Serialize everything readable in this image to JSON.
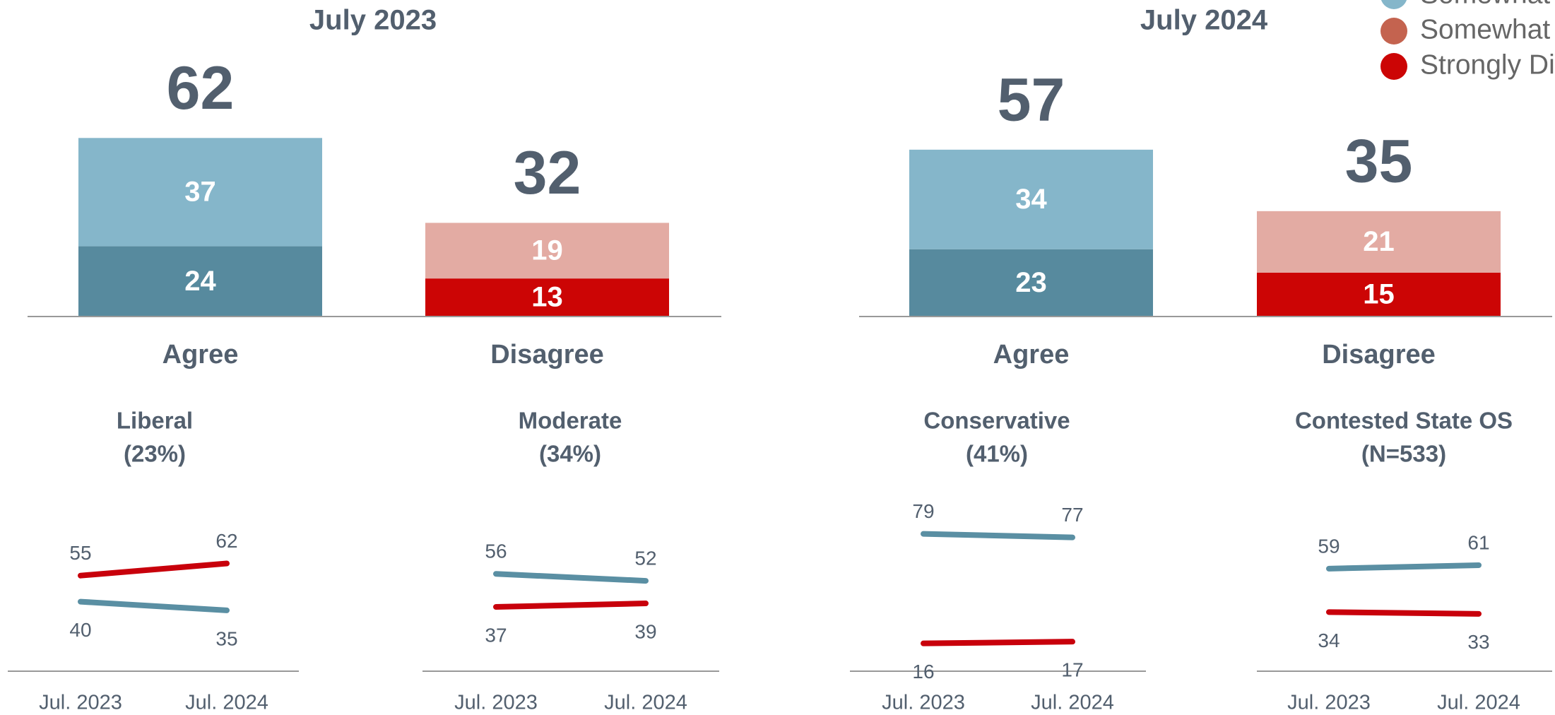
{
  "chart_data": [
    {
      "type": "stacked-bar",
      "title": "July 2023",
      "categories": [
        "Agree",
        "Disagree"
      ],
      "totals": [
        62,
        32
      ],
      "series": [
        {
          "colors": [
            "#578a9e",
            "#cc0505"
          ],
          "values": [
            24,
            13
          ]
        },
        {
          "colors": [
            "#85b6ca",
            "#e3aba3"
          ],
          "values": [
            37,
            19
          ]
        }
      ],
      "ylim": [
        0,
        70
      ]
    },
    {
      "type": "stacked-bar",
      "title": "July 2024",
      "categories": [
        "Agree",
        "Disagree"
      ],
      "totals": [
        57,
        35
      ],
      "series": [
        {
          "colors": [
            "#578a9e",
            "#cc0505"
          ],
          "values": [
            23,
            15
          ]
        },
        {
          "colors": [
            "#85b6ca",
            "#e3aba3"
          ],
          "values": [
            34,
            21
          ]
        }
      ],
      "ylim": [
        0,
        70
      ]
    },
    {
      "type": "line",
      "title": "Liberal",
      "subtitle": "(23%)",
      "categories": [
        "Jul. 2023",
        "Jul. 2024"
      ],
      "series": [
        {
          "color": "#5a8fa3",
          "values": [
            40,
            35
          ]
        },
        {
          "color": "#c8000b",
          "values": [
            55,
            62
          ]
        }
      ],
      "ylim": [
        0,
        100
      ]
    },
    {
      "type": "line",
      "title": "Moderate",
      "subtitle": "(34%)",
      "categories": [
        "Jul. 2023",
        "Jul. 2024"
      ],
      "series": [
        {
          "color": "#5a8fa3",
          "values": [
            56,
            52
          ]
        },
        {
          "color": "#c8000b",
          "values": [
            37,
            39
          ]
        }
      ],
      "ylim": [
        0,
        100
      ]
    },
    {
      "type": "line",
      "title": "Conservative",
      "subtitle": "(41%)",
      "categories": [
        "Jul. 2023",
        "Jul. 2024"
      ],
      "series": [
        {
          "color": "#5a8fa3",
          "values": [
            79,
            77
          ]
        },
        {
          "color": "#c8000b",
          "values": [
            16,
            17
          ]
        }
      ],
      "ylim": [
        0,
        100
      ]
    },
    {
      "type": "line",
      "title": "Contested State OS",
      "subtitle": "(N=533)",
      "categories": [
        "Jul. 2023",
        "Jul. 2024"
      ],
      "series": [
        {
          "color": "#5a8fa3",
          "values": [
            59,
            61
          ]
        },
        {
          "color": "#c8000b",
          "values": [
            34,
            33
          ]
        }
      ],
      "ylim": [
        0,
        100
      ]
    }
  ],
  "legend": [
    {
      "name": "Somewhat",
      "color": "#85b6ca"
    },
    {
      "name": "Somewhat",
      "color": "#c4634f"
    },
    {
      "name": "Strongly Di",
      "color": "#cc0505"
    }
  ]
}
